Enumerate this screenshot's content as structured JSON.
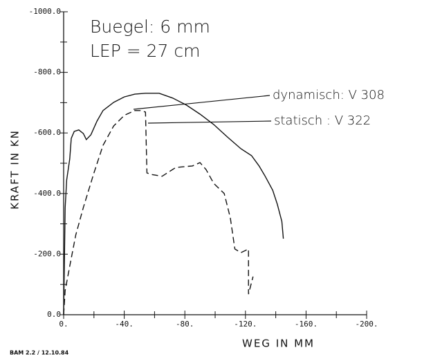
{
  "chart_data": {
    "type": "line",
    "annotations": [
      "Buegel: 6 mm",
      "LEP = 27 cm"
    ],
    "footer": "BAM 2.2 / 12.10.84",
    "x_label": "WEG IN MM",
    "y_label": "KRAFT IN KN",
    "xlim": [
      0,
      -200
    ],
    "ylim": [
      0,
      -1000
    ],
    "xticks": [
      {
        "value": 0,
        "label": "0."
      },
      {
        "value": -40,
        "label": "-40."
      },
      {
        "value": -80,
        "label": "-80."
      },
      {
        "value": -120,
        "label": "-120."
      },
      {
        "value": -160,
        "label": "-160."
      },
      {
        "value": -200,
        "label": "-200."
      }
    ],
    "yticks": [
      {
        "value": 0,
        "label": "0.0"
      },
      {
        "value": -200,
        "label": "-200.0"
      },
      {
        "value": -400,
        "label": "-400.0"
      },
      {
        "value": -600,
        "label": "-600.0"
      },
      {
        "value": -800,
        "label": "-800.0"
      },
      {
        "value": -1000,
        "label": "-1000.0"
      }
    ],
    "series": [
      {
        "name": "dynamisch: V 308",
        "color": "#111111",
        "dash": "solid",
        "x": [
          0,
          -1,
          -2,
          -4,
          -5,
          -7,
          -10,
          -13,
          -15,
          -18,
          -22,
          -26,
          -33,
          -40,
          -47,
          -54,
          -63,
          -72,
          -81,
          -90,
          -99,
          -108,
          -117,
          -124,
          -129,
          -133,
          -138,
          -141,
          -144,
          -145
        ],
        "values": [
          0,
          -354,
          -445,
          -514,
          -582,
          -605,
          -610,
          -598,
          -578,
          -594,
          -639,
          -674,
          -701,
          -719,
          -728,
          -731,
          -731,
          -715,
          -692,
          -662,
          -628,
          -587,
          -548,
          -525,
          -491,
          -457,
          -411,
          -365,
          -308,
          -251
        ]
      },
      {
        "name": "statisch : V 322",
        "color": "#111111",
        "dash": "dashed",
        "x": [
          0,
          -1,
          -4,
          -8,
          -13,
          -20,
          -26,
          -33,
          -40,
          -47,
          -51,
          -54,
          -55,
          -58,
          -65,
          -74,
          -85,
          -90,
          -94,
          -99,
          -106,
          -110,
          -113,
          -117,
          -122,
          -122,
          -125
        ],
        "values": [
          0,
          -80,
          -160,
          -263,
          -354,
          -468,
          -559,
          -623,
          -658,
          -674,
          -674,
          -669,
          -468,
          -463,
          -457,
          -486,
          -491,
          -502,
          -479,
          -434,
          -400,
          -320,
          -217,
          -205,
          -217,
          -68,
          -126
        ]
      }
    ]
  }
}
